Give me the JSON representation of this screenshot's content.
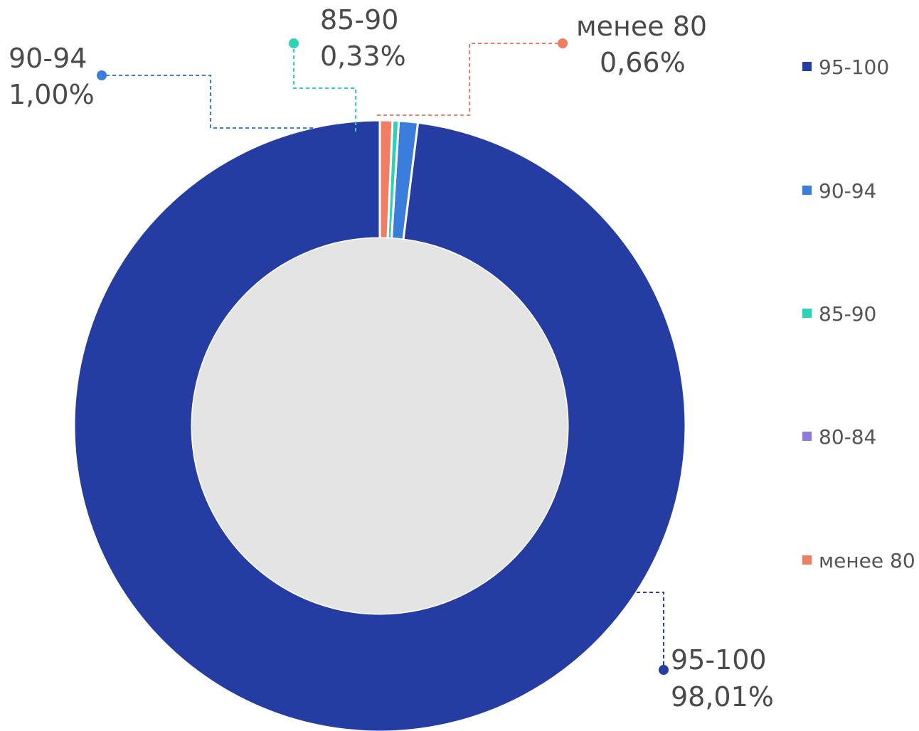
{
  "chart_data": {
    "type": "pie",
    "variant": "donut",
    "series": [
      {
        "name": "95-100",
        "value": 98.01,
        "label": "98,01%",
        "color": "#253da2"
      },
      {
        "name": "90-94",
        "value": 1.0,
        "label": "1,00%",
        "color": "#3b7ddd"
      },
      {
        "name": "85-90",
        "value": 0.33,
        "label": "0,33%",
        "color": "#2ed3b7"
      },
      {
        "name": "80-84",
        "value": 0,
        "label": "",
        "color": "#8e7bdc"
      },
      {
        "name": "менее 80",
        "value": 0.66,
        "label": "0,66%",
        "color": "#f07e64"
      }
    ],
    "hole_color": "#e4e4e4",
    "legend_position": "right"
  }
}
